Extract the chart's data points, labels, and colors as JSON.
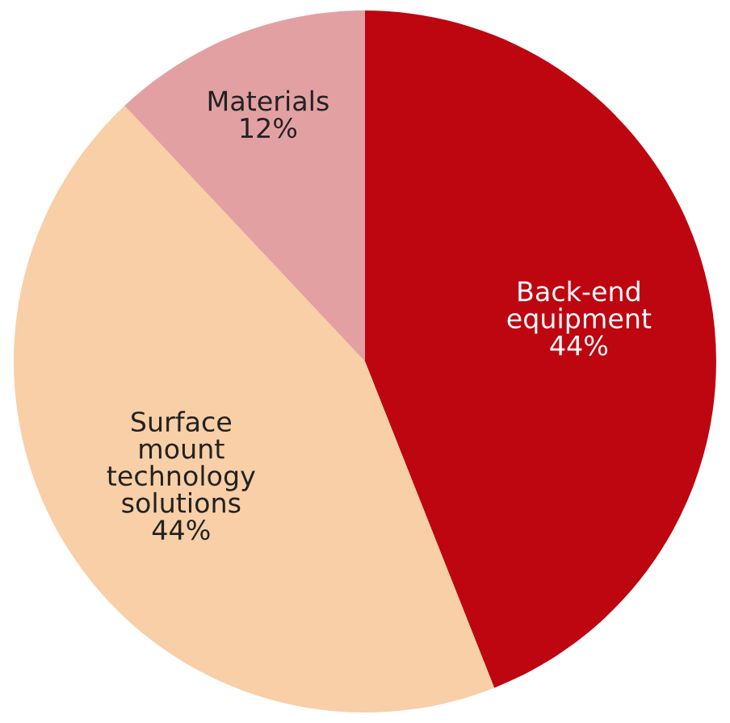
{
  "chart_data": {
    "type": "pie",
    "categories": [
      "Back-end\nequipment",
      "Surface\nmount\ntechnology\nsolutions",
      "Materials"
    ],
    "values": [
      44,
      44,
      12
    ],
    "value_labels": [
      "44%",
      "44%",
      "12%"
    ],
    "colors": [
      "#be0611",
      "#f8cfa6",
      "#e3a0a3"
    ]
  }
}
